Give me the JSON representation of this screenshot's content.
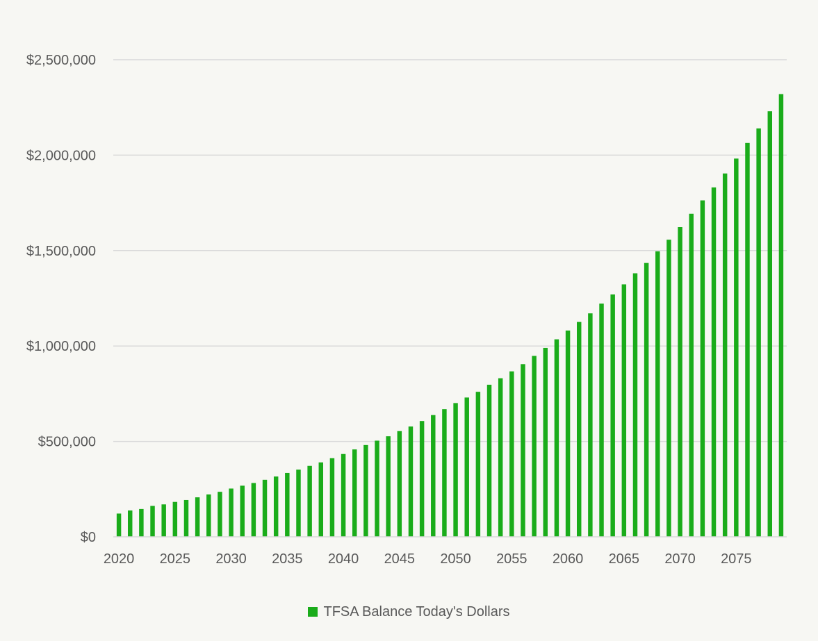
{
  "chart_data": {
    "type": "bar",
    "title": "",
    "xlabel": "",
    "ylabel": "",
    "ylim": [
      0,
      2500000
    ],
    "y_ticks": [
      0,
      500000,
      1000000,
      1500000,
      2000000,
      2500000
    ],
    "y_tick_labels": [
      "$0",
      "$500,000",
      "$1,000,000",
      "$1,500,000",
      "$2,000,000",
      "$2,500,000"
    ],
    "x_tick_labels": [
      "2020",
      "2025",
      "2030",
      "2035",
      "2040",
      "2045",
      "2050",
      "2055",
      "2060",
      "2065",
      "2070",
      "2075"
    ],
    "grid": true,
    "legend_position": "bottom",
    "color": "#1aac1a",
    "categories": [
      2020,
      2021,
      2022,
      2023,
      2024,
      2025,
      2026,
      2027,
      2028,
      2029,
      2030,
      2031,
      2032,
      2033,
      2034,
      2035,
      2036,
      2037,
      2038,
      2039,
      2040,
      2041,
      2042,
      2043,
      2044,
      2045,
      2046,
      2047,
      2048,
      2049,
      2050,
      2051,
      2052,
      2053,
      2054,
      2055,
      2056,
      2057,
      2058,
      2059,
      2060,
      2061,
      2062,
      2063,
      2064,
      2065,
      2066,
      2067,
      2068,
      2069,
      2070,
      2071,
      2072,
      2073,
      2074,
      2075,
      2076,
      2077,
      2078,
      2079
    ],
    "series": [
      {
        "name": "TFSA Balance Today's Dollars",
        "values": [
          122000,
          138000,
          146000,
          162000,
          170000,
          183000,
          193000,
          207000,
          222000,
          236000,
          253000,
          268000,
          282000,
          299000,
          316000,
          335000,
          352000,
          372000,
          390000,
          412000,
          434000,
          458000,
          481000,
          504000,
          527000,
          554000,
          578000,
          607000,
          638000,
          669000,
          701000,
          730000,
          760000,
          797000,
          831000,
          867000,
          905000,
          948000,
          990000,
          1035000,
          1081000,
          1126000,
          1171000,
          1222000,
          1270000,
          1323000,
          1381000,
          1435000,
          1496000,
          1557000,
          1623000,
          1693000,
          1763000,
          1831000,
          1904000,
          1982000,
          2064000,
          2140000,
          2230000,
          2320000
        ]
      }
    ]
  }
}
